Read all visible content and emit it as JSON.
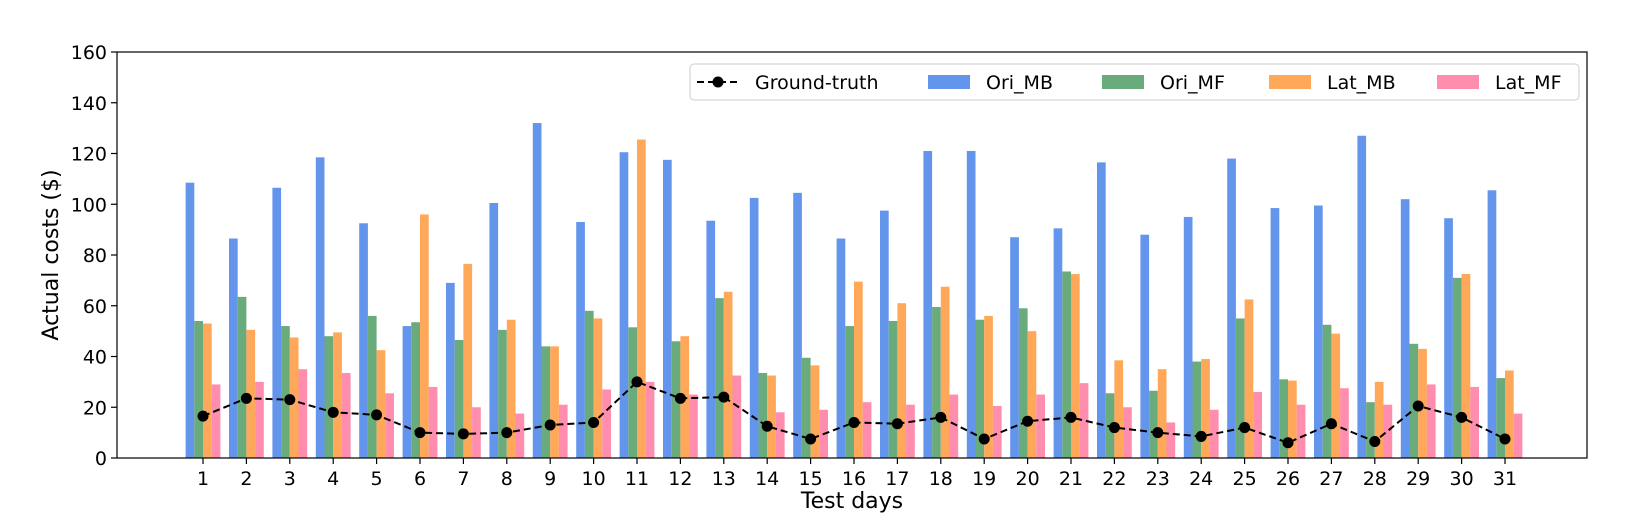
{
  "chart_data": {
    "type": "bar",
    "title": "",
    "xlabel": "Test days",
    "ylabel": "Actual costs ($)",
    "ylim": [
      0,
      160
    ],
    "yticks": [
      "0",
      "20",
      "40",
      "60",
      "80",
      "100",
      "120",
      "140",
      "160"
    ],
    "categories": [
      "1",
      "2",
      "3",
      "4",
      "5",
      "6",
      "7",
      "8",
      "9",
      "10",
      "11",
      "12",
      "13",
      "14",
      "15",
      "16",
      "17",
      "18",
      "19",
      "20",
      "21",
      "22",
      "23",
      "24",
      "25",
      "26",
      "27",
      "28",
      "29",
      "30",
      "31"
    ],
    "series": [
      {
        "name": "Ori_MB",
        "color": "#6495ED",
        "values": [
          108.5,
          86.5,
          106.5,
          118.5,
          92.5,
          52,
          69,
          100.5,
          132,
          93,
          120.5,
          117.5,
          93.5,
          102.5,
          104.5,
          86.5,
          97.5,
          121,
          121,
          87,
          90.5,
          116.5,
          88,
          95,
          118,
          98.5,
          99.5,
          127,
          102,
          94.5,
          105.5
        ]
      },
      {
        "name": "Ori_MF",
        "color": "#6AAB7B",
        "values": [
          54,
          63.5,
          52,
          48,
          56,
          53.5,
          46.5,
          50.5,
          44,
          58,
          51.5,
          46,
          63,
          33.5,
          39.5,
          52,
          54,
          59.5,
          54.5,
          59,
          73.5,
          25.5,
          26.5,
          38,
          55,
          31,
          52.5,
          22,
          45,
          71,
          31.5
        ]
      },
      {
        "name": "Lat_MB",
        "color": "#FFA859",
        "values": [
          53,
          50.5,
          47.5,
          49.5,
          42.5,
          96,
          76.5,
          54.5,
          44,
          55,
          125.5,
          48,
          65.5,
          32.5,
          36.5,
          69.5,
          61,
          67.5,
          56,
          50,
          72.5,
          38.5,
          35,
          39,
          62.5,
          30.5,
          49,
          30,
          43,
          72.5,
          34.5
        ]
      },
      {
        "name": "Lat_MF",
        "color": "#FF8DAD",
        "values": [
          29,
          30,
          35,
          33.5,
          25.5,
          28,
          20,
          17.5,
          21,
          27,
          30,
          25,
          32.5,
          18,
          19,
          22,
          21,
          25,
          20.5,
          25,
          29.5,
          20,
          14,
          19,
          26,
          21,
          27.5,
          21,
          29,
          28,
          17.5
        ]
      }
    ],
    "line": {
      "name": "Ground-truth",
      "color": "#000000",
      "style": "dashed",
      "marker": "circle",
      "values": [
        16.5,
        23.5,
        23,
        18,
        17,
        10,
        9.5,
        10,
        13,
        14,
        30,
        23.5,
        24,
        12.5,
        7.5,
        14,
        13.5,
        16,
        7.5,
        14.5,
        16,
        12,
        10,
        8.5,
        12,
        6,
        13.5,
        6.5,
        20.5,
        16,
        7.5
      ]
    },
    "legend": {
      "placement": "top-right",
      "order": [
        "Ground-truth",
        "Ori_MB",
        "Ori_MF",
        "Lat_MB",
        "Lat_MF"
      ]
    },
    "grid": false
  }
}
